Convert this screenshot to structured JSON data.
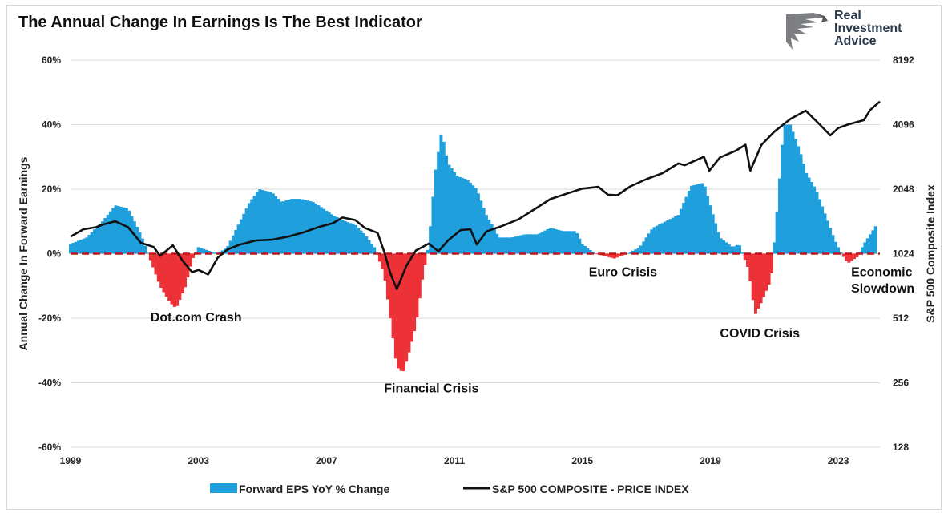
{
  "title": "The Annual Change In Earnings Is The Best Indicator",
  "logo": {
    "lines": [
      "Real",
      "Investment",
      "Advice"
    ]
  },
  "chart_data": {
    "type": "bar",
    "left_axis": {
      "label": "Annual Change In Forward Earnings",
      "ticks": [
        "60%",
        "40%",
        "20%",
        "0%",
        "-20%",
        "-40%",
        "-60%"
      ],
      "tick_values": [
        60,
        40,
        20,
        0,
        -20,
        -40,
        -60
      ],
      "range": [
        -60,
        60
      ]
    },
    "right_axis": {
      "label": "S&P 500  Composite Index",
      "scale": "log2",
      "ticks": [
        "8192",
        "4096",
        "2048",
        "1024",
        "512",
        "256",
        "128"
      ],
      "tick_values": [
        8192,
        4096,
        2048,
        1024,
        512,
        256,
        128
      ],
      "range": [
        128,
        8192
      ]
    },
    "x_axis": {
      "ticks": [
        "1999",
        "2003",
        "2007",
        "2011",
        "2015",
        "2019",
        "2023"
      ],
      "tick_values": [
        1999,
        2003,
        2007,
        2011,
        2015,
        2019,
        2023
      ],
      "range": [
        1999,
        2024.3
      ]
    },
    "grid": true,
    "colors": {
      "positive": "#1f9fdc",
      "negative": "#ec3237",
      "line": "#111111",
      "zero_line": "#c0141b",
      "grid": "#d9d9d9"
    },
    "series": [
      {
        "name": "Forward EPS YoY % Change",
        "type": "bar",
        "points": [
          [
            1999.0,
            3
          ],
          [
            1999.5,
            5
          ],
          [
            2000.0,
            10
          ],
          [
            2000.4,
            15
          ],
          [
            2000.8,
            14
          ],
          [
            2001.2,
            6
          ],
          [
            2001.5,
            -2
          ],
          [
            2001.8,
            -10
          ],
          [
            2002.1,
            -15
          ],
          [
            2002.3,
            -17
          ],
          [
            2002.6,
            -10
          ],
          [
            2002.8,
            -2
          ],
          [
            2003.0,
            2
          ],
          [
            2003.3,
            1
          ],
          [
            2003.6,
            0
          ],
          [
            2003.9,
            2
          ],
          [
            2004.2,
            8
          ],
          [
            2004.6,
            16
          ],
          [
            2004.9,
            20
          ],
          [
            2005.3,
            19
          ],
          [
            2005.6,
            16
          ],
          [
            2005.9,
            17
          ],
          [
            2006.2,
            17
          ],
          [
            2006.6,
            16
          ],
          [
            2006.9,
            14
          ],
          [
            2007.2,
            12
          ],
          [
            2007.6,
            10
          ],
          [
            2007.9,
            9
          ],
          [
            2008.2,
            6
          ],
          [
            2008.5,
            2
          ],
          [
            2008.8,
            -6
          ],
          [
            2009.0,
            -20
          ],
          [
            2009.2,
            -35
          ],
          [
            2009.4,
            -37
          ],
          [
            2009.6,
            -30
          ],
          [
            2009.8,
            -22
          ],
          [
            2010.0,
            -8
          ],
          [
            2010.2,
            3
          ],
          [
            2010.4,
            25
          ],
          [
            2010.6,
            38
          ],
          [
            2010.8,
            28
          ],
          [
            2011.1,
            24
          ],
          [
            2011.4,
            23
          ],
          [
            2011.7,
            20
          ],
          [
            2012.0,
            12
          ],
          [
            2012.4,
            5
          ],
          [
            2012.8,
            5
          ],
          [
            2013.2,
            6
          ],
          [
            2013.6,
            6
          ],
          [
            2014.0,
            8
          ],
          [
            2014.4,
            7
          ],
          [
            2014.8,
            7
          ],
          [
            2015.0,
            3
          ],
          [
            2015.4,
            0
          ],
          [
            2015.8,
            -1
          ],
          [
            2016.0,
            -1.5
          ],
          [
            2016.4,
            0
          ],
          [
            2016.8,
            2
          ],
          [
            2017.2,
            8
          ],
          [
            2017.6,
            10
          ],
          [
            2018.0,
            12
          ],
          [
            2018.4,
            21
          ],
          [
            2018.8,
            22
          ],
          [
            2019.0,
            15
          ],
          [
            2019.3,
            5
          ],
          [
            2019.7,
            2
          ],
          [
            2019.9,
            3
          ],
          [
            2020.2,
            -5
          ],
          [
            2020.4,
            -19
          ],
          [
            2020.6,
            -15
          ],
          [
            2020.9,
            -8
          ],
          [
            2021.1,
            15
          ],
          [
            2021.3,
            40
          ],
          [
            2021.5,
            40
          ],
          [
            2021.8,
            32
          ],
          [
            2022.0,
            25
          ],
          [
            2022.3,
            20
          ],
          [
            2022.6,
            12
          ],
          [
            2022.9,
            4
          ],
          [
            2023.1,
            0
          ],
          [
            2023.3,
            -3
          ],
          [
            2023.6,
            -1
          ],
          [
            2023.8,
            3
          ],
          [
            2024.0,
            6
          ],
          [
            2024.2,
            9
          ]
        ]
      },
      {
        "name": "S&P 500 COMPOSITE - PRICE INDEX",
        "type": "line",
        "points": [
          [
            1999.0,
            1230
          ],
          [
            1999.4,
            1330
          ],
          [
            1999.8,
            1360
          ],
          [
            2000.0,
            1400
          ],
          [
            2000.4,
            1450
          ],
          [
            2000.8,
            1360
          ],
          [
            2001.2,
            1150
          ],
          [
            2001.6,
            1100
          ],
          [
            2001.8,
            1000
          ],
          [
            2002.2,
            1120
          ],
          [
            2002.5,
            950
          ],
          [
            2002.8,
            840
          ],
          [
            2003.0,
            860
          ],
          [
            2003.3,
            820
          ],
          [
            2003.6,
            980
          ],
          [
            2003.9,
            1070
          ],
          [
            2004.3,
            1130
          ],
          [
            2004.8,
            1180
          ],
          [
            2005.3,
            1190
          ],
          [
            2005.8,
            1230
          ],
          [
            2006.3,
            1290
          ],
          [
            2006.8,
            1370
          ],
          [
            2007.2,
            1420
          ],
          [
            2007.5,
            1510
          ],
          [
            2007.9,
            1470
          ],
          [
            2008.2,
            1350
          ],
          [
            2008.6,
            1280
          ],
          [
            2008.8,
            1050
          ],
          [
            2009.0,
            830
          ],
          [
            2009.2,
            700
          ],
          [
            2009.5,
            900
          ],
          [
            2009.8,
            1060
          ],
          [
            2010.2,
            1140
          ],
          [
            2010.5,
            1050
          ],
          [
            2010.8,
            1180
          ],
          [
            2011.2,
            1320
          ],
          [
            2011.5,
            1330
          ],
          [
            2011.7,
            1130
          ],
          [
            2012.0,
            1300
          ],
          [
            2012.5,
            1380
          ],
          [
            2013.0,
            1480
          ],
          [
            2013.5,
            1650
          ],
          [
            2014.0,
            1840
          ],
          [
            2014.5,
            1950
          ],
          [
            2015.0,
            2060
          ],
          [
            2015.5,
            2100
          ],
          [
            2015.8,
            1930
          ],
          [
            2016.1,
            1920
          ],
          [
            2016.5,
            2110
          ],
          [
            2017.0,
            2280
          ],
          [
            2017.5,
            2430
          ],
          [
            2018.0,
            2700
          ],
          [
            2018.2,
            2650
          ],
          [
            2018.8,
            2900
          ],
          [
            2018.97,
            2500
          ],
          [
            2019.3,
            2880
          ],
          [
            2019.8,
            3100
          ],
          [
            2020.1,
            3300
          ],
          [
            2020.25,
            2500
          ],
          [
            2020.6,
            3300
          ],
          [
            2021.0,
            3800
          ],
          [
            2021.5,
            4350
          ],
          [
            2021.98,
            4760
          ],
          [
            2022.4,
            4130
          ],
          [
            2022.75,
            3650
          ],
          [
            2023.0,
            3950
          ],
          [
            2023.3,
            4100
          ],
          [
            2023.8,
            4300
          ],
          [
            2024.0,
            4800
          ],
          [
            2024.3,
            5250
          ]
        ]
      }
    ],
    "annotations": [
      {
        "text": "Dot.com Crash",
        "x": 2001.5,
        "y": -21
      },
      {
        "text": "Financial Crisis",
        "x": 2008.8,
        "y": -43
      },
      {
        "text": "Euro Crisis",
        "x": 2015.2,
        "y": -7
      },
      {
        "text": "COVID Crisis",
        "x": 2019.3,
        "y": -26
      },
      {
        "text": "Economic",
        "x": 2023.4,
        "y": -7
      },
      {
        "text": "Slowdown",
        "x": 2023.4,
        "y": -12
      }
    ],
    "legend": {
      "placement": "bottom"
    }
  }
}
